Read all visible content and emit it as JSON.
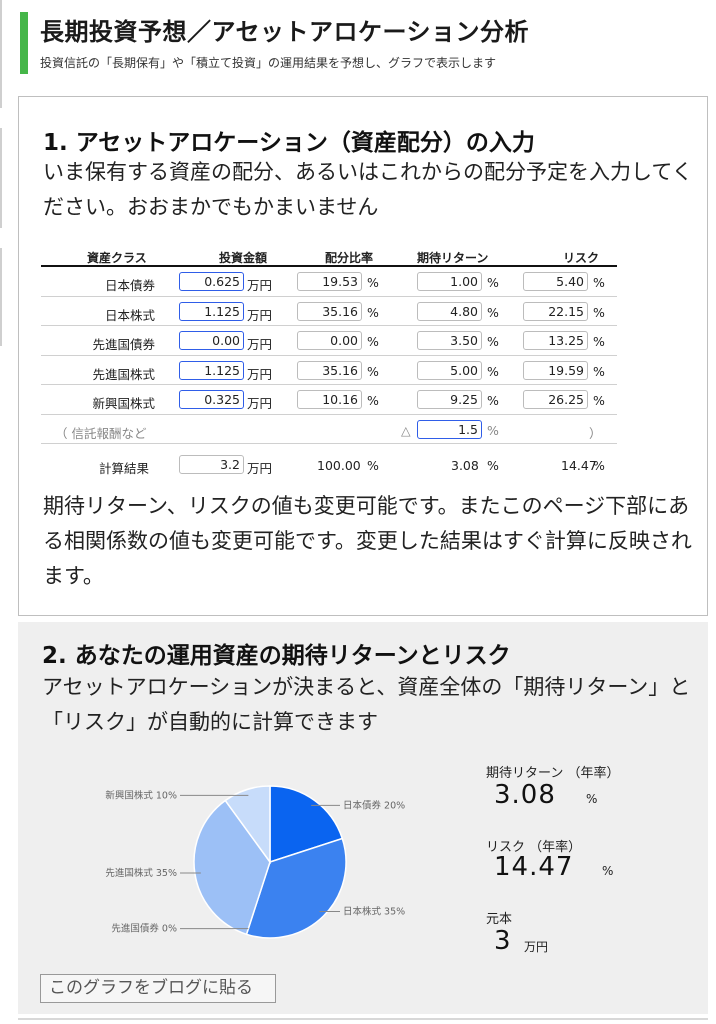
{
  "header": {
    "title": "長期投資予想／アセットアロケーション分析",
    "subtitle": "投資信託の「長期保有」や「積立て投資」の運用結果を予想し、グラフで表示します"
  },
  "section1": {
    "title": "1. アセットアロケーション（資産配分）の入力",
    "desc": "いま保有する資産の配分、あるいはこれからの配分予定を入力してください。おおまかでもかまいません",
    "table": {
      "headers": [
        "資産クラス",
        "投資金額",
        "配分比率",
        "期待リターン",
        "リスク"
      ],
      "rows": [
        {
          "name": "日本債券",
          "amount": "0.625",
          "amount_unit": "万円",
          "ratio": "19.53",
          "ratio_unit": "%",
          "ret": "1.00",
          "ret_unit": "%",
          "risk": "5.40",
          "risk_unit": "%"
        },
        {
          "name": "日本株式",
          "amount": "1.125",
          "amount_unit": "万円",
          "ratio": "35.16",
          "ratio_unit": "%",
          "ret": "4.80",
          "ret_unit": "%",
          "risk": "22.15",
          "risk_unit": "%"
        },
        {
          "name": "先進国債券",
          "amount": "0.00",
          "amount_unit": "万円",
          "ratio": "0.00",
          "ratio_unit": "%",
          "ret": "3.50",
          "ret_unit": "%",
          "risk": "13.25",
          "risk_unit": "%"
        },
        {
          "name": "先進国株式",
          "amount": "1.125",
          "amount_unit": "万円",
          "ratio": "35.16",
          "ratio_unit": "%",
          "ret": "5.00",
          "ret_unit": "%",
          "risk": "19.59",
          "risk_unit": "%"
        },
        {
          "name": "新興国株式",
          "amount": "0.325",
          "amount_unit": "万円",
          "ratio": "10.16",
          "ratio_unit": "%",
          "ret": "9.25",
          "ret_unit": "%",
          "risk": "26.25",
          "risk_unit": "%"
        }
      ],
      "fee_row": {
        "label": "（ 信託報酬など",
        "triangle": "△",
        "value": "1.5",
        "unit": "%",
        "close": "）"
      },
      "result_row": {
        "label": "計算結果",
        "amount": "3.2",
        "amount_unit": "万円",
        "ratio": "100.00",
        "ratio_unit": "%",
        "ret": "3.08",
        "ret_unit": "%",
        "risk": "14.47",
        "risk_unit": "%"
      }
    },
    "foot": "期待リターン、リスクの値も変更可能です。またこのページ下部にある相関係数の値も変更可能です。変更した結果はすぐ計算に反映されます。"
  },
  "section2": {
    "title": "2. あなたの運用資産の期待リターンとリスク",
    "desc": "アセットアロケーションが決まると、資産全体の「期待リターン」と「リスク」が自動的に計算できます",
    "stats": {
      "return_label": "期待リターン （年率）",
      "return_value": "3.08",
      "return_unit": "%",
      "risk_label": "リスク （年率）",
      "risk_value": "14.47",
      "risk_unit": "%",
      "principal_label": "元本",
      "principal_value": "3",
      "principal_unit": "万円"
    },
    "blog_button": "このグラフをブログに貼る"
  },
  "chart_data": {
    "type": "pie",
    "categories": [
      "日本債券",
      "日本株式",
      "先進国債券",
      "先進国株式",
      "新興国株式"
    ],
    "values": [
      20,
      35,
      0,
      35,
      10
    ],
    "labels": [
      "日本債券 20%",
      "日本株式 35%",
      "先進国債券 0%",
      "先進国株式 35%",
      "新興国株式 10%"
    ],
    "colors": [
      "#0a64f0",
      "#3b82f0",
      "#5d97f2",
      "#9cc0f6",
      "#c7dcfa"
    ]
  }
}
